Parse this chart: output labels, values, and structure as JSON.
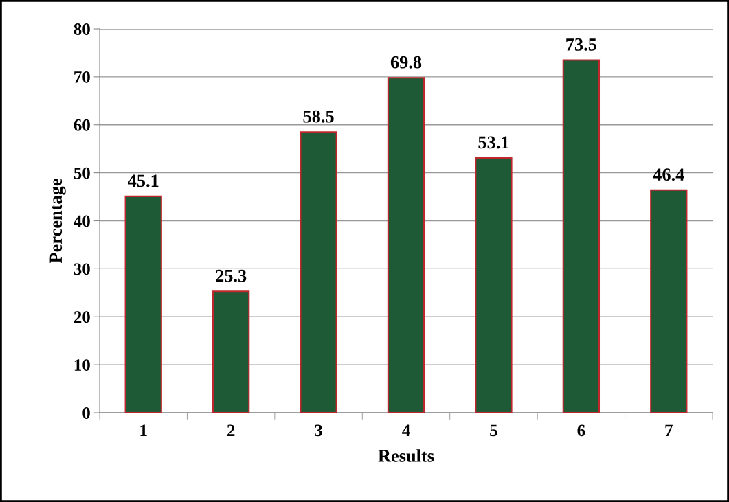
{
  "chart_data": {
    "type": "bar",
    "xlabel": "Results",
    "ylabel": "Percentage",
    "categories": [
      "1",
      "2",
      "3",
      "4",
      "5",
      "6",
      "7"
    ],
    "values": [
      45.1,
      25.3,
      58.5,
      69.8,
      53.1,
      73.5,
      46.4
    ],
    "color": "#1f5a36",
    "ylim": [
      0,
      80
    ],
    "yticks": [
      0,
      10,
      20,
      30,
      40,
      50,
      60,
      70,
      80
    ],
    "grid": "y",
    "data_labels": true
  }
}
